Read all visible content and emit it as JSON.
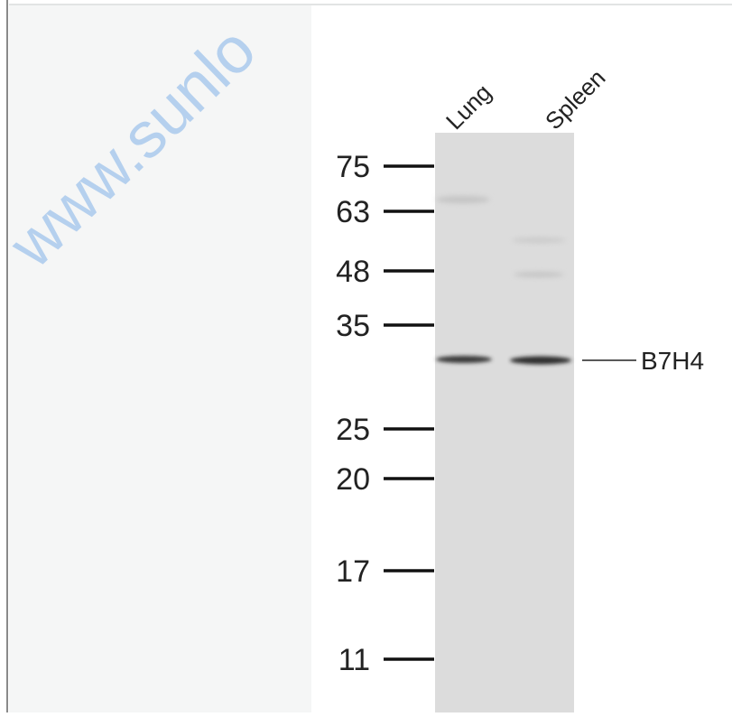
{
  "watermark": "www.sunlo",
  "lanes": [
    "Lung",
    "Spleen"
  ],
  "markers": [
    "75",
    "63",
    "48",
    "35",
    "25",
    "20",
    "17",
    "11"
  ],
  "band_label": "B7H4"
}
